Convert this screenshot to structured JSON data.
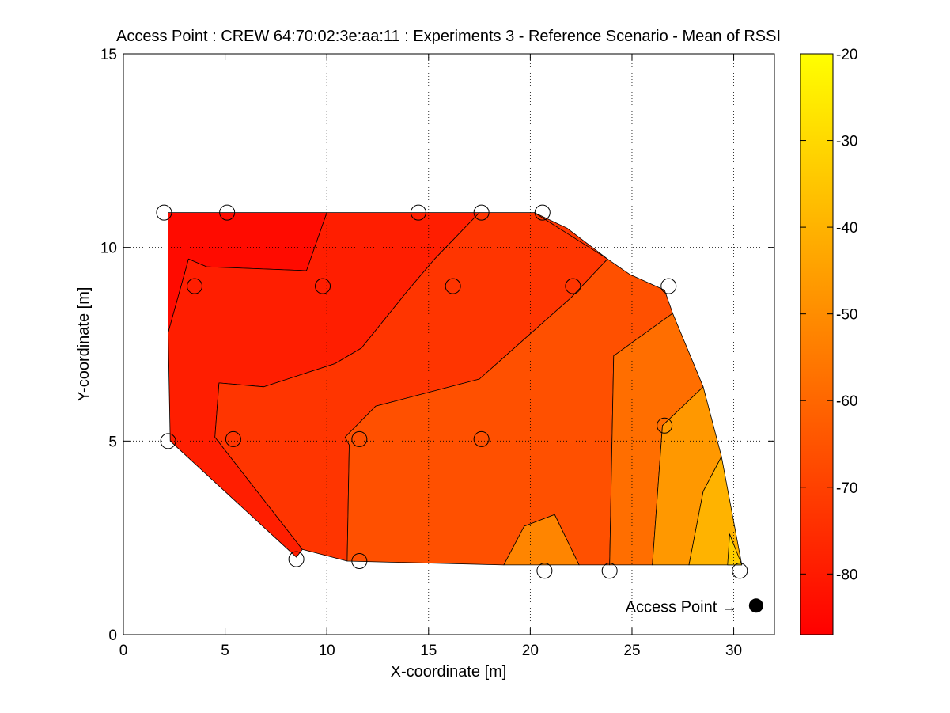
{
  "chart_data": {
    "type": "contour",
    "title": "Access Point : CREW 64:70:02:3e:aa:11 : Experiments 3 - Reference Scenario - Mean of RSSI",
    "xlabel": "X-coordinate [m]",
    "ylabel": "Y-coordinate [m]",
    "xlim": [
      0,
      32
    ],
    "ylim": [
      0,
      15
    ],
    "x_ticks": [
      0,
      5,
      10,
      15,
      20,
      25,
      30
    ],
    "y_ticks": [
      0,
      5,
      10,
      15
    ],
    "grid": true,
    "grid_style": "dotted",
    "colorbar": {
      "range": [
        -87,
        -20
      ],
      "ticks": [
        -20,
        -30,
        -40,
        -50,
        -60,
        -70,
        -80
      ],
      "colormap": "autumn",
      "colors": [
        "#ff0000",
        "#ffff00"
      ]
    },
    "measurement_points": [
      [
        2.0,
        10.9
      ],
      [
        5.1,
        10.9
      ],
      [
        14.5,
        10.9
      ],
      [
        17.6,
        10.9
      ],
      [
        20.6,
        10.9
      ],
      [
        3.5,
        9.0
      ],
      [
        9.8,
        9.0
      ],
      [
        16.2,
        9.0
      ],
      [
        22.1,
        9.0
      ],
      [
        26.8,
        9.0
      ],
      [
        2.2,
        5.0
      ],
      [
        5.4,
        5.05
      ],
      [
        11.6,
        5.05
      ],
      [
        17.6,
        5.05
      ],
      [
        26.6,
        5.4
      ],
      [
        8.5,
        1.95
      ],
      [
        11.6,
        1.9
      ],
      [
        20.7,
        1.65
      ],
      [
        23.9,
        1.65
      ],
      [
        30.3,
        1.65
      ]
    ],
    "contour_regions": [
      {
        "level": -84,
        "polygon": [
          [
            2.2,
            10.9
          ],
          [
            10.0,
            10.9
          ],
          [
            9.0,
            9.4
          ],
          [
            4.1,
            9.5
          ],
          [
            3.2,
            9.7
          ],
          [
            3.1,
            9.5
          ],
          [
            2.2,
            7.8
          ]
        ]
      },
      {
        "level": -79,
        "polygon": [
          [
            10.0,
            10.9
          ],
          [
            17.5,
            10.9
          ],
          [
            15.3,
            9.7
          ],
          [
            14.0,
            8.9
          ],
          [
            11.7,
            7.4
          ],
          [
            10.4,
            7.0
          ],
          [
            6.9,
            6.4
          ],
          [
            4.7,
            6.5
          ],
          [
            4.5,
            5.1
          ],
          [
            8.8,
            2.2
          ],
          [
            8.5,
            2.0
          ],
          [
            2.3,
            5.0
          ],
          [
            2.2,
            7.8
          ],
          [
            3.1,
            9.5
          ],
          [
            3.2,
            9.7
          ],
          [
            4.1,
            9.5
          ],
          [
            9.0,
            9.4
          ]
        ]
      },
      {
        "level": -73,
        "polygon": [
          [
            17.5,
            10.9
          ],
          [
            20.2,
            10.9
          ],
          [
            21.8,
            10.5
          ],
          [
            23.8,
            9.7
          ],
          [
            22.0,
            8.7
          ],
          [
            17.5,
            6.6
          ],
          [
            12.4,
            5.9
          ],
          [
            10.9,
            5.1
          ],
          [
            11.1,
            4.9
          ],
          [
            11.0,
            1.9
          ],
          [
            8.8,
            2.2
          ],
          [
            4.5,
            5.1
          ],
          [
            4.7,
            6.5
          ],
          [
            6.9,
            6.4
          ],
          [
            10.4,
            7.0
          ],
          [
            11.7,
            7.4
          ],
          [
            14.0,
            8.9
          ],
          [
            15.3,
            9.7
          ]
        ]
      },
      {
        "level": -66,
        "polygon": [
          [
            20.2,
            10.9
          ],
          [
            23.8,
            9.7
          ],
          [
            24.9,
            9.3
          ],
          [
            26.6,
            8.9
          ],
          [
            27.0,
            8.3
          ],
          [
            24.1,
            7.2
          ],
          [
            23.9,
            1.8
          ],
          [
            22.4,
            1.8
          ],
          [
            21.2,
            3.1
          ],
          [
            19.7,
            2.8
          ],
          [
            18.7,
            1.8
          ],
          [
            11.0,
            1.9
          ],
          [
            11.1,
            4.9
          ],
          [
            10.9,
            5.1
          ],
          [
            12.4,
            5.9
          ],
          [
            17.5,
            6.6
          ],
          [
            22.0,
            8.7
          ],
          [
            23.8,
            9.7
          ]
        ]
      },
      {
        "level": -58,
        "polygon": [
          [
            27.0,
            8.3
          ],
          [
            24.1,
            7.2
          ],
          [
            23.9,
            1.8
          ],
          [
            26.0,
            1.8
          ],
          [
            26.5,
            5.4
          ],
          [
            28.5,
            6.4
          ]
        ]
      },
      {
        "level": -52,
        "polygon": [
          [
            18.7,
            1.8
          ],
          [
            19.7,
            2.8
          ],
          [
            21.2,
            3.1
          ],
          [
            22.4,
            1.8
          ]
        ]
      },
      {
        "level": -47,
        "polygon": [
          [
            28.5,
            6.4
          ],
          [
            26.5,
            5.4
          ],
          [
            26.0,
            1.8
          ],
          [
            27.8,
            1.8
          ],
          [
            28.5,
            3.7
          ],
          [
            29.4,
            4.6
          ]
        ]
      },
      {
        "level": -40,
        "polygon": [
          [
            29.4,
            4.6
          ],
          [
            28.5,
            3.7
          ],
          [
            27.8,
            1.8
          ],
          [
            29.7,
            1.8
          ],
          [
            30.4,
            1.8
          ]
        ]
      },
      {
        "level": -33,
        "polygon": [
          [
            29.7,
            1.8
          ],
          [
            29.8,
            2.6
          ],
          [
            30.4,
            1.8
          ]
        ]
      }
    ],
    "annotation": {
      "text": "Access Point →",
      "point": [
        31.1,
        0.75
      ]
    }
  }
}
